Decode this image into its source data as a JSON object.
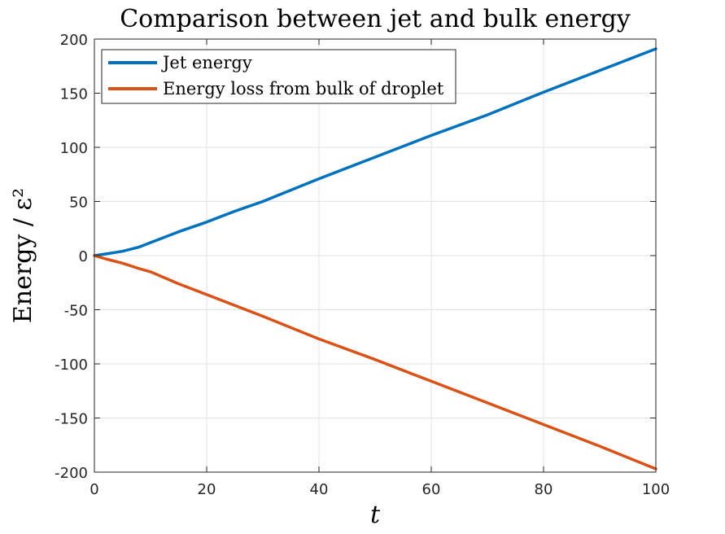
{
  "chart_data": {
    "type": "line",
    "title": "Comparison between jet and bulk energy",
    "xlabel": "t",
    "ylabel": "Energy / ε²",
    "xlim": [
      0,
      100
    ],
    "ylim": [
      -200,
      200
    ],
    "xticks": [
      0,
      20,
      40,
      60,
      80,
      100
    ],
    "xtick_labels": [
      "0",
      "20",
      "40",
      "60",
      "80",
      "100"
    ],
    "yticks": [
      200,
      150,
      100,
      50,
      0,
      -50,
      -100,
      -150,
      -200
    ],
    "ytick_labels": [
      "200",
      "150",
      "100",
      "50",
      "0",
      "-50",
      "-100",
      "-150",
      "-200"
    ],
    "grid": true,
    "legend_position": "top-left",
    "series": [
      {
        "name": "Jet energy",
        "color": "#0072BD",
        "x": [
          0,
          2,
          5,
          8,
          10,
          12,
          15,
          20,
          25,
          30,
          40,
          50,
          60,
          70,
          80,
          90,
          100
        ],
        "values": [
          0,
          1.5,
          4,
          8,
          12,
          16,
          22,
          31,
          41,
          50,
          71,
          91,
          111,
          130,
          151,
          171,
          191
        ]
      },
      {
        "name": "Energy loss from bulk of droplet",
        "color": "#D95319",
        "x": [
          0,
          2,
          5,
          8,
          10,
          15,
          20,
          30,
          40,
          50,
          60,
          70,
          80,
          90,
          100
        ],
        "values": [
          0,
          -3,
          -7,
          -12,
          -15,
          -26,
          -36,
          -56,
          -77,
          -96,
          -116,
          -136,
          -156,
          -176,
          -197
        ]
      }
    ]
  }
}
